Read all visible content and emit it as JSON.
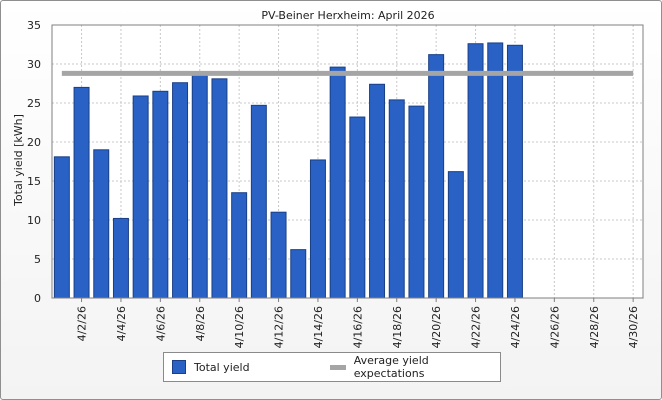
{
  "chart_data": {
    "type": "bar",
    "title": "PV-Beiner Herxheim: April 2026",
    "ylabel": "Total yield [kWh]",
    "xlabel": "",
    "ylim": [
      0,
      35
    ],
    "yticks": [
      0,
      5,
      10,
      15,
      20,
      25,
      30,
      35
    ],
    "grid": true,
    "legend_position": "bottom",
    "x_tick_labels": [
      "4/2/26",
      "4/4/26",
      "4/6/26",
      "4/8/26",
      "4/10/26",
      "4/12/26",
      "4/14/26",
      "4/16/26",
      "4/18/26",
      "4/20/26",
      "4/22/26",
      "4/24/26",
      "4/26/26",
      "4/28/26",
      "4/30/26"
    ],
    "categories": [
      "4/1/26",
      "4/2/26",
      "4/3/26",
      "4/4/26",
      "4/5/26",
      "4/6/26",
      "4/7/26",
      "4/8/26",
      "4/9/26",
      "4/10/26",
      "4/11/26",
      "4/12/26",
      "4/13/26",
      "4/14/26",
      "4/15/26",
      "4/16/26",
      "4/17/26",
      "4/18/26",
      "4/19/26",
      "4/20/26",
      "4/21/26",
      "4/22/26",
      "4/23/26",
      "4/24/26",
      "4/25/26",
      "4/26/26",
      "4/27/26",
      "4/28/26",
      "4/29/26",
      "4/30/26"
    ],
    "series": [
      {
        "name": "Total yield",
        "type": "bar",
        "color": "#2962c4",
        "values": [
          18.1,
          27.0,
          19.0,
          10.2,
          25.9,
          26.5,
          27.6,
          28.8,
          28.1,
          13.5,
          24.7,
          11.0,
          6.2,
          17.7,
          29.6,
          23.2,
          27.4,
          25.4,
          24.6,
          31.2,
          16.2,
          32.6,
          32.7,
          32.4,
          null,
          null,
          null,
          null,
          null,
          null
        ]
      },
      {
        "name": "Average yield expectations",
        "type": "line",
        "color": "#a5a5a5",
        "value": 28.8
      }
    ]
  }
}
